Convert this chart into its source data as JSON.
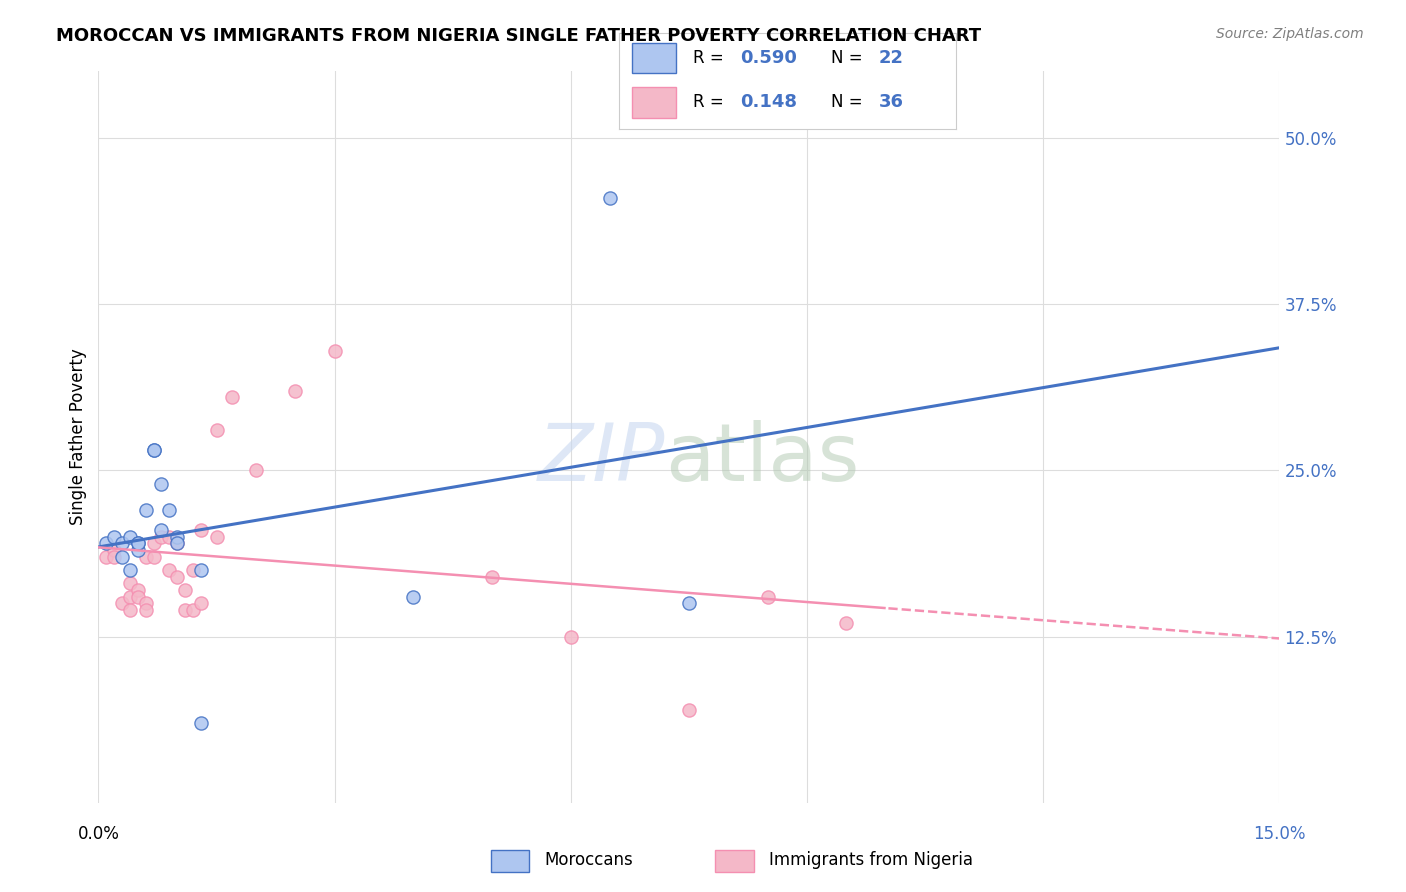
{
  "title": "MOROCCAN VS IMMIGRANTS FROM NIGERIA SINGLE FATHER POVERTY CORRELATION CHART",
  "source": "Source: ZipAtlas.com",
  "ylabel": "Single Father Poverty",
  "right_yticks": [
    "50.0%",
    "37.5%",
    "25.0%",
    "12.5%"
  ],
  "right_ytick_vals": [
    0.5,
    0.375,
    0.25,
    0.125
  ],
  "xlim": [
    0.0,
    0.15
  ],
  "ylim": [
    0.0,
    0.55
  ],
  "moroccan_R": "0.590",
  "moroccan_N": "22",
  "nigeria_R": "0.148",
  "nigeria_N": "36",
  "moroccan_color": "#aec6f0",
  "nigeria_color": "#f4b8c8",
  "moroccan_line_color": "#4472c4",
  "nigeria_line_color": "#f48fb1",
  "moroccan_x": [
    0.001,
    0.002,
    0.003,
    0.003,
    0.004,
    0.004,
    0.005,
    0.005,
    0.005,
    0.006,
    0.007,
    0.007,
    0.008,
    0.008,
    0.009,
    0.01,
    0.01,
    0.013,
    0.013,
    0.04,
    0.065,
    0.075
  ],
  "moroccan_y": [
    0.195,
    0.2,
    0.185,
    0.195,
    0.2,
    0.175,
    0.19,
    0.195,
    0.195,
    0.22,
    0.265,
    0.265,
    0.205,
    0.24,
    0.22,
    0.2,
    0.195,
    0.175,
    0.06,
    0.155,
    0.455,
    0.15
  ],
  "nigeria_x": [
    0.001,
    0.002,
    0.002,
    0.003,
    0.004,
    0.004,
    0.004,
    0.005,
    0.005,
    0.006,
    0.006,
    0.006,
    0.007,
    0.007,
    0.008,
    0.009,
    0.009,
    0.01,
    0.01,
    0.011,
    0.011,
    0.012,
    0.012,
    0.013,
    0.013,
    0.015,
    0.015,
    0.017,
    0.02,
    0.025,
    0.03,
    0.05,
    0.06,
    0.075,
    0.085,
    0.095
  ],
  "nigeria_y": [
    0.185,
    0.19,
    0.185,
    0.15,
    0.155,
    0.145,
    0.165,
    0.16,
    0.155,
    0.15,
    0.185,
    0.145,
    0.185,
    0.195,
    0.2,
    0.175,
    0.2,
    0.17,
    0.195,
    0.16,
    0.145,
    0.145,
    0.175,
    0.205,
    0.15,
    0.28,
    0.2,
    0.305,
    0.25,
    0.31,
    0.34,
    0.17,
    0.125,
    0.07,
    0.155,
    0.135
  ],
  "legend_label_1": "Moroccans",
  "legend_label_2": "Immigrants from Nigeria",
  "background_color": "#ffffff",
  "grid_color": "#dddddd",
  "vert_grid_x": [
    0.0,
    0.03,
    0.06,
    0.09,
    0.12,
    0.15
  ]
}
